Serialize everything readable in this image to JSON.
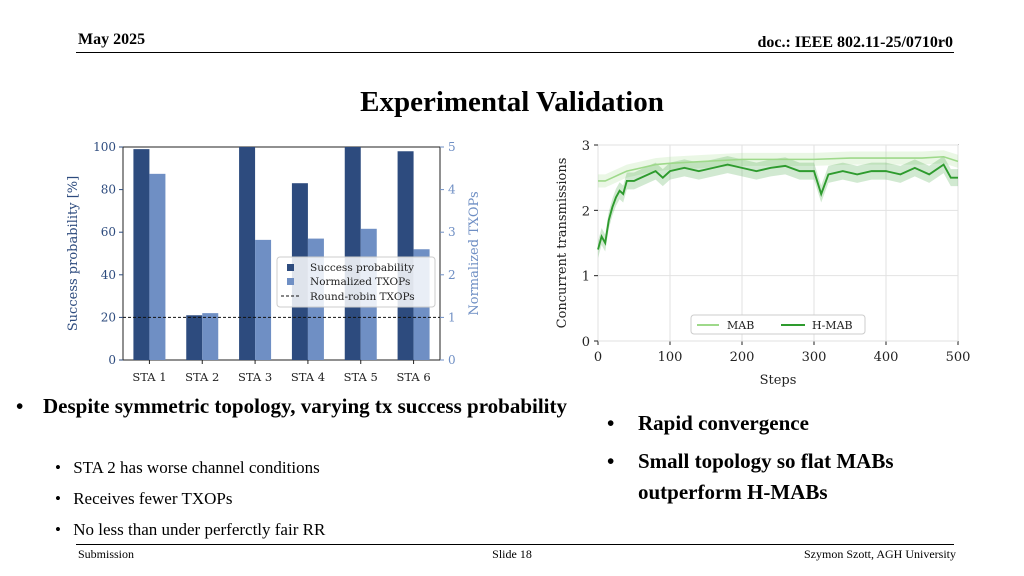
{
  "header": {
    "date": "May 2025",
    "doc": "doc.: IEEE 802.11-25/0710r0"
  },
  "slide_title": "Experimental Validation",
  "left_bullets": {
    "main": "Despite symmetric topology, varying tx success probability",
    "subs": [
      "STA 2 has worse channel conditions",
      "Receives fewer TXOPs",
      "No less than under perferctly fair RR"
    ]
  },
  "right_bullets": [
    "Rapid convergence",
    "Small topology so flat MABs outperform H-MABs"
  ],
  "footer": {
    "left": "Submission",
    "center": "Slide 18",
    "right": "Szymon Szott, AGH University"
  },
  "chart_data": [
    {
      "type": "bar",
      "categories": [
        "STA 1",
        "STA 2",
        "STA 3",
        "STA 4",
        "STA 5",
        "STA 6"
      ],
      "series": [
        {
          "name": "Success probability",
          "values": [
            99,
            21,
            100,
            83,
            100,
            98
          ],
          "axis": "left",
          "color": "#2d4b7e"
        },
        {
          "name": "Normalized TXOPs",
          "values": [
            4.37,
            1.1,
            2.82,
            2.85,
            3.08,
            2.6
          ],
          "axis": "right",
          "color": "#6f8fc4"
        }
      ],
      "reference_line": {
        "name": "Round-robin TXOPs",
        "value": 1,
        "axis": "right",
        "style": "dashed"
      },
      "ylabel": "Success probability [%]",
      "ylabel_right": "Normalized TXOPs",
      "ylim": [
        0,
        100
      ],
      "ylim_right": [
        0,
        5
      ],
      "yticks": [
        "0",
        "20",
        "40",
        "60",
        "80",
        "100"
      ],
      "yticks_right": [
        "0",
        "1",
        "2",
        "3",
        "4",
        "5"
      ],
      "legend": "center-right"
    },
    {
      "type": "line",
      "xlabel": "Steps",
      "ylabel": "Concurrent transmissions",
      "xlim": [
        0,
        500
      ],
      "ylim": [
        0,
        3
      ],
      "xticks": [
        "0",
        "100",
        "200",
        "300",
        "400",
        "500"
      ],
      "yticks": [
        "0",
        "1",
        "2",
        "3"
      ],
      "legend": "bottom-center",
      "series": [
        {
          "name": "MAB",
          "color": "#9ed98a",
          "x": [
            0,
            10,
            20,
            30,
            40,
            60,
            80,
            100,
            150,
            200,
            250,
            300,
            350,
            400,
            450,
            480,
            500
          ],
          "y": [
            2.45,
            2.45,
            2.5,
            2.55,
            2.6,
            2.65,
            2.7,
            2.72,
            2.75,
            2.78,
            2.78,
            2.78,
            2.8,
            2.8,
            2.8,
            2.82,
            2.75
          ]
        },
        {
          "name": "H-MAB",
          "color": "#2e9b2e",
          "x": [
            0,
            5,
            10,
            15,
            20,
            25,
            30,
            35,
            40,
            50,
            60,
            70,
            80,
            90,
            100,
            120,
            140,
            160,
            180,
            200,
            220,
            240,
            260,
            280,
            300,
            310,
            320,
            340,
            360,
            380,
            400,
            420,
            440,
            460,
            480,
            490,
            500
          ],
          "y": [
            1.4,
            1.6,
            1.5,
            1.85,
            2.05,
            2.2,
            2.3,
            2.25,
            2.45,
            2.45,
            2.5,
            2.55,
            2.6,
            2.5,
            2.6,
            2.65,
            2.6,
            2.65,
            2.7,
            2.65,
            2.6,
            2.65,
            2.68,
            2.6,
            2.6,
            2.25,
            2.55,
            2.6,
            2.55,
            2.6,
            2.6,
            2.55,
            2.65,
            2.55,
            2.7,
            2.5,
            2.5
          ]
        }
      ]
    }
  ]
}
